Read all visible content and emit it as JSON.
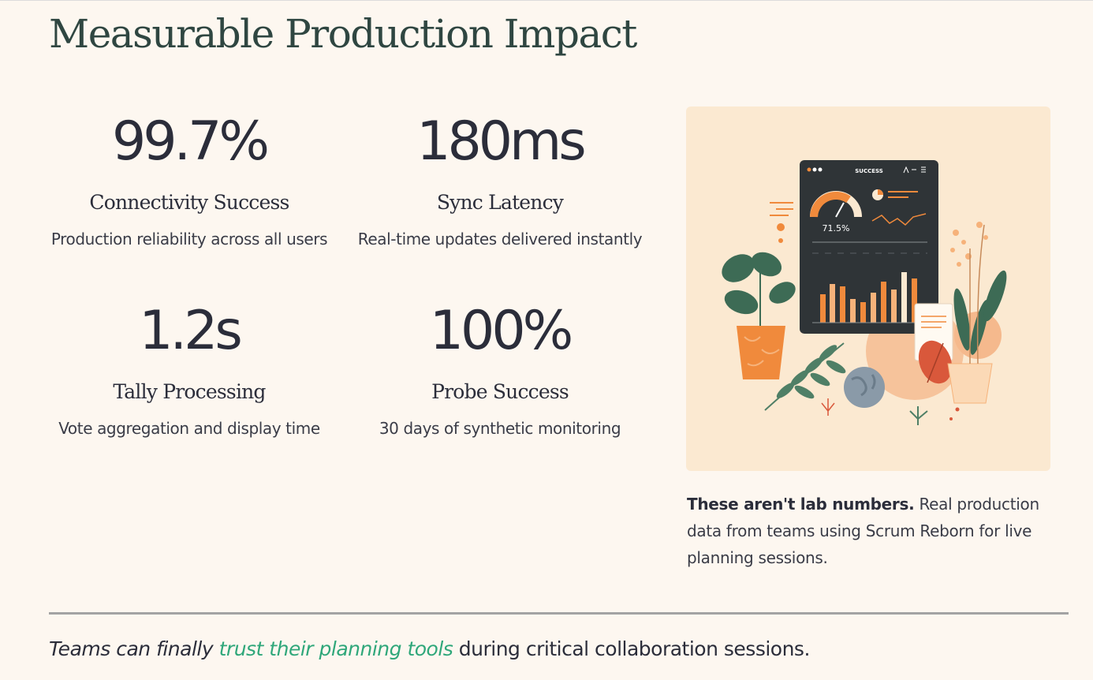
{
  "title": "Measurable Production Impact",
  "stats": [
    {
      "value": "99.7%",
      "label": "Connectivity Success",
      "description": "Production reliability across all users"
    },
    {
      "value": "180ms",
      "label": "Sync Latency",
      "description": "Real-time updates delivered instantly"
    },
    {
      "value": "1.2s",
      "label": "Tally Processing",
      "description": "Vote aggregation and display time"
    },
    {
      "value": "100%",
      "label": "Probe Success",
      "description": "30 days of synthetic monitoring"
    }
  ],
  "illustration": {
    "header_label": "SUCCESS",
    "gauge_value": "71.5%"
  },
  "note": {
    "bold": "These aren't lab numbers.",
    "rest": " Real production data from teams using Scrum Reborn for live planning sessions."
  },
  "footer": {
    "lead": "Teams can finally ",
    "link": "trust their planning tools",
    "tail": " during critical collaboration sessions."
  },
  "colors": {
    "background": "#fdf7f0",
    "title": "#2f4641",
    "text": "#2b2d3a",
    "link": "#2fa77a",
    "accent_orange": "#f08a3c",
    "dashboard_dark": "#2f3437",
    "leaf_green": "#3d6b55"
  }
}
